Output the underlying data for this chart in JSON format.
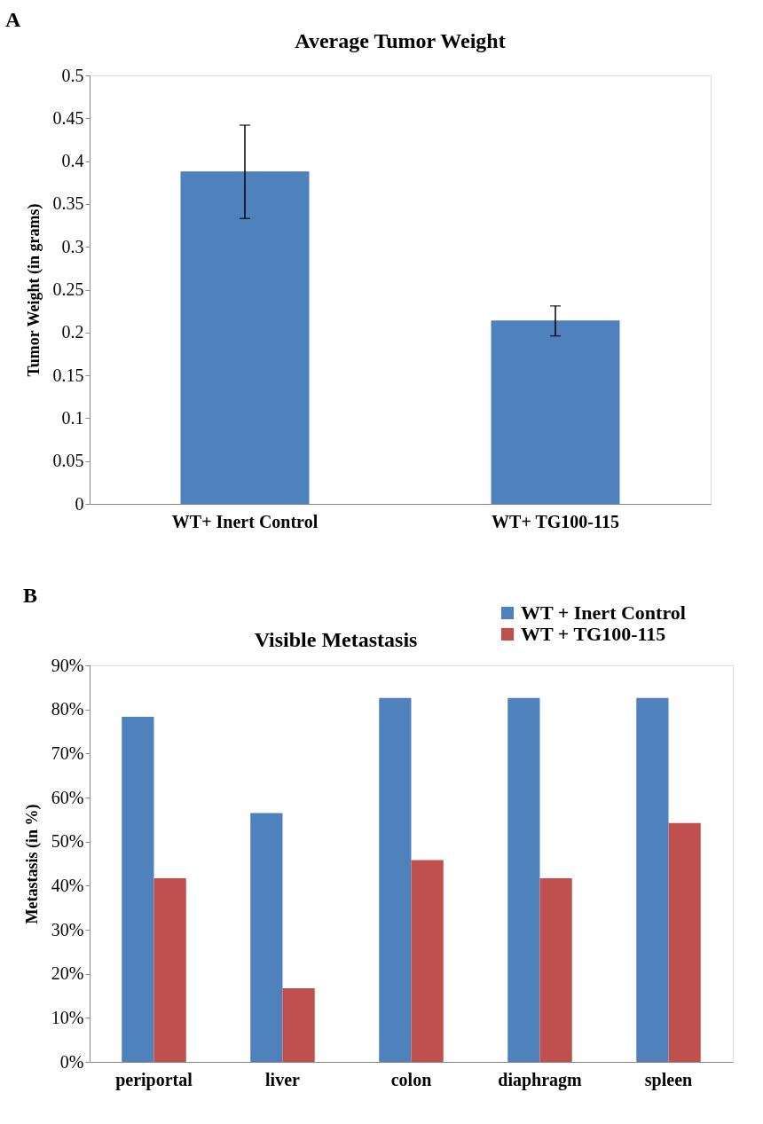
{
  "chart_data": [
    {
      "type": "bar",
      "title": "Average Tumor Weight",
      "ylabel": "Tumor Weight (in grams)",
      "annotations": [
        "A"
      ],
      "categories": [
        "WT+ Inert Control",
        "WT+ TG100-115"
      ],
      "series": [
        {
          "color": "#4f81bd",
          "values": [
            0.388,
            0.214
          ],
          "errors": [
            [
              0.333,
              0.442
            ],
            [
              0.196,
              0.231
            ]
          ]
        }
      ],
      "ylim": [
        0,
        0.5
      ],
      "yticks": [
        0,
        0.05,
        0.1,
        0.15,
        0.2,
        0.25,
        0.3,
        0.35,
        0.4,
        0.45,
        0.5
      ],
      "grid": false
    },
    {
      "type": "bar",
      "title": "Visible Metastasis",
      "ylabel": "Metastasis (in %)",
      "annotations": [
        "B"
      ],
      "categories": [
        "periportal",
        "liver",
        "colon",
        "diaphragm",
        "spleen"
      ],
      "series": [
        {
          "name": "WT + Inert Control",
          "color": "#4f81bd",
          "values": [
            78.3,
            56.5,
            82.6,
            82.6,
            82.6
          ]
        },
        {
          "name": "WT + TG100-115",
          "color": "#c0504d",
          "values": [
            41.7,
            16.7,
            45.8,
            41.7,
            54.2
          ]
        }
      ],
      "ylim": [
        0,
        90
      ],
      "yticks": [
        {
          "value": 0,
          "label": "0%"
        },
        {
          "value": 10,
          "label": "10%"
        },
        {
          "value": 20,
          "label": "20%"
        },
        {
          "value": 30,
          "label": "30%"
        },
        {
          "value": 40,
          "label": "40%"
        },
        {
          "value": 50,
          "label": "50%"
        },
        {
          "value": 60,
          "label": "60%"
        },
        {
          "value": 70,
          "label": "70%"
        },
        {
          "value": 80,
          "label": "80%"
        },
        {
          "value": 90,
          "label": "90%"
        }
      ],
      "grid": false,
      "legend": "top right"
    }
  ]
}
